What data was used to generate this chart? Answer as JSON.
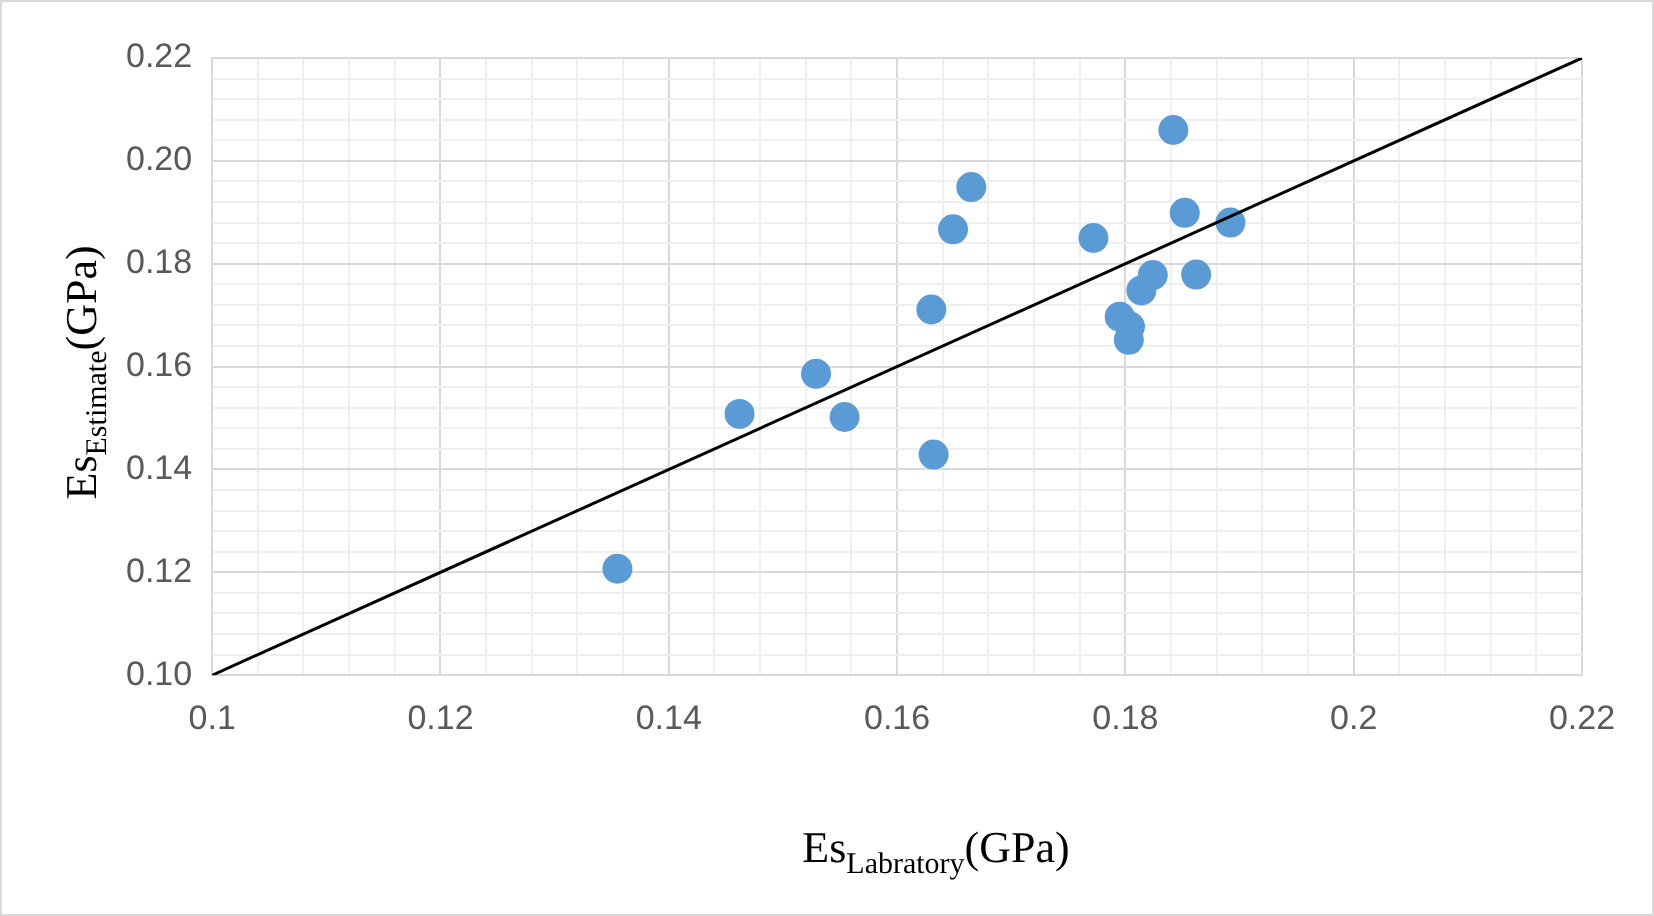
{
  "chart_data": {
    "type": "scatter",
    "xlabel": "Es$_{Labratory}$(GPa)",
    "ylabel": "Es$_{Estimate}$(GPa)",
    "xlim": [
      0.1,
      0.22
    ],
    "xticks": [
      0.1,
      {
        "value": 0.104,
        "label": null
      },
      {
        "value": 0.108,
        "label": null
      },
      {
        "value": 0.112,
        "label": null
      },
      {
        "value": 0.116,
        "label": null
      },
      0.12,
      {
        "value": 0.124,
        "label": null
      },
      {
        "value": 0.128,
        "label": null
      },
      {
        "value": 0.132,
        "label": null
      },
      {
        "value": 0.136,
        "label": null
      },
      0.14,
      {
        "value": 0.144,
        "label": null
      },
      {
        "value": 0.148,
        "label": null
      },
      {
        "value": 0.152,
        "label": null
      },
      {
        "value": 0.156,
        "label": null
      },
      0.16,
      {
        "value": 0.164,
        "label": null
      },
      {
        "value": 0.168,
        "label": null
      },
      {
        "value": 0.172,
        "label": null
      },
      {
        "value": 0.176,
        "label": null
      },
      0.18,
      {
        "value": 0.184,
        "label": null
      },
      {
        "value": 0.188,
        "label": null
      },
      {
        "value": 0.192,
        "label": null
      },
      {
        "value": 0.196,
        "label": null
      },
      0.2,
      {
        "value": 0.204,
        "label": null
      },
      {
        "value": 0.208,
        "label": null
      },
      {
        "value": 0.212,
        "label": null
      },
      {
        "value": 0.216,
        "label": null
      },
      0.22
    ],
    "ylim": [
      0.1,
      0.22
    ],
    "yticks": [
      {
        "value": 0.1,
        "label": "0.10"
      },
      {
        "value": 0.104,
        "label": null
      },
      {
        "value": 0.108,
        "label": null
      },
      {
        "value": 0.112,
        "label": null
      },
      {
        "value": 0.116,
        "label": null
      },
      {
        "value": 0.12,
        "label": "0.12"
      },
      {
        "value": 0.124,
        "label": null
      },
      {
        "value": 0.128,
        "label": null
      },
      {
        "value": 0.132,
        "label": null
      },
      {
        "value": 0.136,
        "label": null
      },
      {
        "value": 0.14,
        "label": "0.14"
      },
      {
        "value": 0.144,
        "label": null
      },
      {
        "value": 0.148,
        "label": null
      },
      {
        "value": 0.152,
        "label": null
      },
      {
        "value": 0.156,
        "label": null
      },
      {
        "value": 0.16,
        "label": "0.16"
      },
      {
        "value": 0.164,
        "label": null
      },
      {
        "value": 0.168,
        "label": null
      },
      {
        "value": 0.172,
        "label": null
      },
      {
        "value": 0.176,
        "label": null
      },
      {
        "value": 0.18,
        "label": "0.18"
      },
      {
        "value": 0.184,
        "label": null
      },
      {
        "value": 0.188,
        "label": null
      },
      {
        "value": 0.192,
        "label": null
      },
      {
        "value": 0.196,
        "label": null
      },
      {
        "value": 0.2,
        "label": "0.20"
      },
      {
        "value": 0.204,
        "label": null
      },
      {
        "value": 0.208,
        "label": null
      },
      {
        "value": 0.212,
        "label": null
      },
      {
        "value": 0.216,
        "label": null
      },
      {
        "value": 0.22,
        "label": "0.22"
      }
    ],
    "grid": true,
    "legend": false,
    "series": [
      {
        "color": "#5b9bd5",
        "marker": "circle",
        "x": [
          0.1355,
          0.1462,
          0.1529,
          0.1554,
          0.1632,
          0.163,
          0.1649,
          0.1665,
          0.1772,
          0.1842,
          0.1852,
          0.1892,
          0.1862,
          0.1824,
          0.1814,
          0.1795,
          0.1804,
          0.1803
        ],
        "values": [
          0.1207,
          0.1508,
          0.1586,
          0.1502,
          0.1429,
          0.1711,
          0.1867,
          0.1949,
          0.185,
          0.206,
          0.1899,
          0.188,
          0.1779,
          0.1778,
          0.1748,
          0.1697,
          0.1678,
          0.1652
        ]
      },
      {
        "type": "line",
        "color": "#000000",
        "marker": "none",
        "line_style": "solid",
        "x": [
          0.1,
          0.22
        ],
        "values": [
          0.1,
          0.22
        ]
      }
    ]
  }
}
